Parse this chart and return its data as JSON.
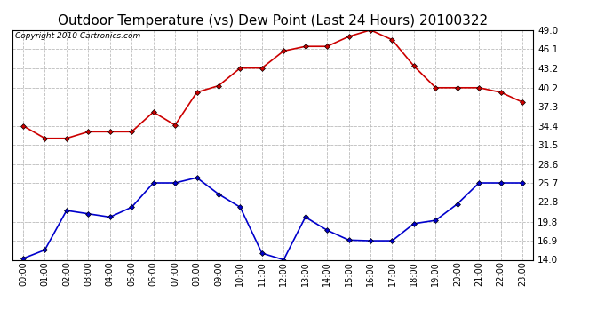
{
  "title": "Outdoor Temperature (vs) Dew Point (Last 24 Hours) 20100322",
  "copyright": "Copyright 2010 Cartronics.com",
  "x_labels": [
    "00:00",
    "01:00",
    "02:00",
    "03:00",
    "04:00",
    "05:00",
    "06:00",
    "07:00",
    "08:00",
    "09:00",
    "10:00",
    "11:00",
    "12:00",
    "13:00",
    "14:00",
    "15:00",
    "16:00",
    "17:00",
    "18:00",
    "19:00",
    "20:00",
    "21:00",
    "22:00",
    "23:00"
  ],
  "temp_data": [
    34.4,
    32.5,
    32.5,
    33.5,
    33.5,
    33.5,
    36.5,
    34.5,
    39.5,
    40.5,
    43.2,
    43.2,
    45.8,
    46.5,
    46.5,
    48.0,
    49.0,
    47.5,
    43.5,
    40.2,
    40.2,
    40.2,
    39.5,
    38.0
  ],
  "dew_data": [
    14.2,
    15.5,
    21.5,
    21.0,
    20.5,
    22.0,
    25.7,
    25.7,
    26.5,
    24.0,
    22.0,
    15.0,
    14.0,
    20.5,
    18.5,
    17.0,
    16.9,
    16.9,
    19.5,
    20.0,
    22.5,
    25.7,
    25.7,
    25.7
  ],
  "y_ticks": [
    14.0,
    16.9,
    19.8,
    22.8,
    25.7,
    28.6,
    31.5,
    34.4,
    37.3,
    40.2,
    43.2,
    46.1,
    49.0
  ],
  "y_min": 14.0,
  "y_max": 49.0,
  "temp_color": "#cc0000",
  "dew_color": "#0000cc",
  "grid_color": "#bbbbbb",
  "bg_color": "#ffffff",
  "title_fontsize": 11,
  "copyright_fontsize": 6.5,
  "tick_fontsize": 7,
  "ytick_fontsize": 7.5
}
